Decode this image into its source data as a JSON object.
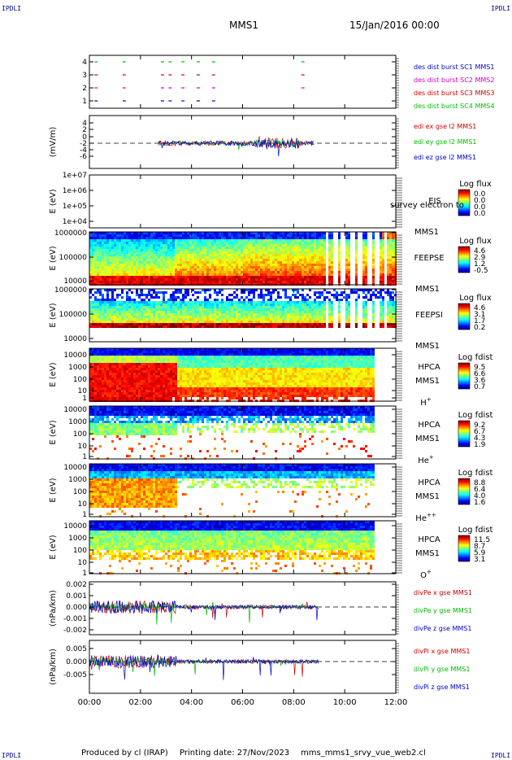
{
  "corner_label": "IPDLI",
  "header": {
    "title": "MMS1",
    "date": "15/Jan/2016 00:00"
  },
  "footer": {
    "produced_by": "Produced by cl (IRAP)",
    "printing_date": "Printing date: 27/Nov/2023",
    "filename": "mms_mms1_srvy_vue_web2.cl"
  },
  "chart_data": {
    "type": "stacked-time-series",
    "x_ticks": [
      "00:00",
      "02:00",
      "04:00",
      "06:00",
      "08:00",
      "10:00",
      "12:00"
    ],
    "panels": [
      {
        "id": "burst",
        "type": "line",
        "ylabel": "",
        "y_ticks": [
          "4",
          "3",
          "2",
          "1"
        ],
        "legend": [
          {
            "text": "des dist burst SC1 MMS1",
            "color": "#0000cc"
          },
          {
            "text": "des dist burst SC2 MMS2",
            "color": "#cc00cc"
          },
          {
            "text": "des dist burst SC3 MMS3",
            "color": "#cc0000"
          },
          {
            "text": "des dist burst SC4 MMS4",
            "color": "#00bb00"
          }
        ]
      },
      {
        "id": "edi",
        "type": "line",
        "ylabel": "(mV/m)",
        "y_ticks": [
          "4",
          "2",
          "0",
          "-2",
          "-4",
          "-6"
        ],
        "legend": [
          {
            "text": "edi ex gse l2 MMS1",
            "color": "#cc0000"
          },
          {
            "text": "edi ey gse l2 MMS1",
            "color": "#00bb00"
          },
          {
            "text": "edi ez gse l2 MMS1",
            "color": "#0000cc"
          }
        ]
      },
      {
        "id": "eis",
        "type": "heatmap",
        "ylabel": "E (eV)",
        "y_ticks": [
          "1e+07",
          "1e+06",
          "1e+05",
          "1e+04"
        ],
        "instrument": "EIS",
        "instrument2": "MMS1",
        "overlay": "survey electron to",
        "cbar_title": "Log flux",
        "cbar_ticks": [
          "0.0",
          "0.0",
          "0.0",
          "0.0"
        ]
      },
      {
        "id": "feepse",
        "type": "heatmap",
        "ylabel": "E (eV)",
        "y_ticks": [
          "1000000",
          "100000",
          "10000"
        ],
        "instrument": "FEEPSE",
        "instrument2": "MMS1",
        "cbar_title": "Log flux",
        "cbar_ticks": [
          "4.6",
          "2.9",
          "1.2",
          "-0.5"
        ]
      },
      {
        "id": "feepsi",
        "type": "heatmap",
        "ylabel": "E (eV)",
        "y_ticks": [
          "1000000",
          "100000",
          "10000"
        ],
        "instrument": "FEEPSI",
        "instrument2": "MMS1",
        "cbar_title": "Log flux",
        "cbar_ticks": [
          "4.6",
          "3.1",
          "1.7",
          "0.2"
        ]
      },
      {
        "id": "hpca_h",
        "type": "heatmap",
        "ylabel": "E (eV)",
        "y_ticks": [
          "10000",
          "1000",
          "100",
          "10",
          "1"
        ],
        "instrument": "HPCA",
        "instrument2": "MMS1",
        "species": "H",
        "species_sup": "+",
        "cbar_title": "Log fdist",
        "cbar_ticks": [
          "9.5",
          "6.6",
          "3.6",
          "0.7"
        ]
      },
      {
        "id": "hpca_he",
        "type": "heatmap",
        "ylabel": "E (eV)",
        "y_ticks": [
          "10000",
          "1000",
          "100",
          "10",
          "1"
        ],
        "instrument": "HPCA",
        "instrument2": "MMS1",
        "species": "He",
        "species_sup": "+",
        "cbar_title": "Log fdist",
        "cbar_ticks": [
          "9.2",
          "6.7",
          "4.3",
          "1.9"
        ]
      },
      {
        "id": "hpca_he2",
        "type": "heatmap",
        "ylabel": "E (eV)",
        "y_ticks": [
          "10000",
          "1000",
          "100",
          "10",
          "1"
        ],
        "instrument": "HPCA",
        "instrument2": "MMS1",
        "species": "He",
        "species_sup": "++",
        "cbar_title": "Log fdist",
        "cbar_ticks": [
          "8.8",
          "6.4",
          "4.0",
          "1.6"
        ]
      },
      {
        "id": "hpca_o",
        "type": "heatmap",
        "ylabel": "E (eV)",
        "y_ticks": [
          "10000",
          "1000",
          "100",
          "10",
          "1"
        ],
        "instrument": "HPCA",
        "instrument2": "MMS1",
        "species": "O",
        "species_sup": "+",
        "cbar_title": "Log fdist",
        "cbar_ticks": [
          "11.5",
          "8.7",
          "5.9",
          "3.1"
        ]
      },
      {
        "id": "divpe",
        "type": "line",
        "ylabel": "(nPa/km)",
        "y_ticks": [
          "0.002",
          "0.001",
          "0.000",
          "-0.001",
          "-0.002"
        ],
        "legend": [
          {
            "text": "divPe x gse MMS1",
            "color": "#cc0000"
          },
          {
            "text": "divPe y gse MMS1",
            "color": "#00bb00"
          },
          {
            "text": "divPe z gse MMS1",
            "color": "#0000cc"
          }
        ]
      },
      {
        "id": "divpi",
        "type": "line",
        "ylabel": "(nPa/km)",
        "y_ticks": [
          "0.005",
          "0.000",
          "-0.005"
        ],
        "legend": [
          {
            "text": "divPi x gse MMS1",
            "color": "#cc0000"
          },
          {
            "text": "divPi y gse MMS1",
            "color": "#00bb00"
          },
          {
            "text": "divPi z gse MMS1",
            "color": "#0000cc"
          }
        ]
      }
    ]
  }
}
